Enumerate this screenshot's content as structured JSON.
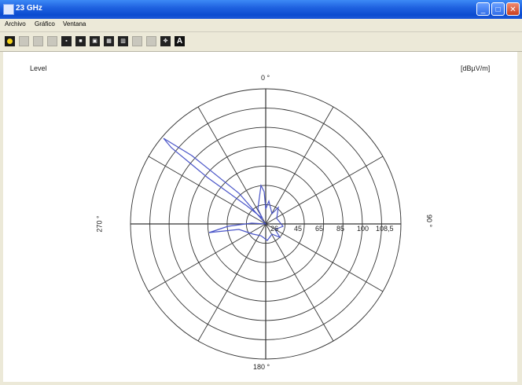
{
  "window": {
    "title": "23 GHz"
  },
  "menu": [
    "Archivo",
    "Gráfico",
    "Ventana"
  ],
  "window_buttons": {
    "minimize": "_",
    "maximize": "□",
    "close": "✕"
  },
  "plot": {
    "level_label": "Level",
    "unit_label": "[dBµV/m]",
    "angle_0": "0 °",
    "angle_90": "90 °",
    "angle_180": "180 °",
    "angle_270": "270 °",
    "ring_labels": [
      "26",
      "45",
      "65",
      "85",
      "100",
      "108,5"
    ],
    "trace_color": "#4a55c8"
  },
  "toolbar_icons": [
    "home-icon",
    "grid-icon",
    "grid-icon",
    "grid-icon",
    "zoom-icon",
    "sn-icon",
    "zs-icon",
    "chart-icon",
    "chart-icon",
    "grid-icon",
    "grid-icon",
    "move-icon",
    "text-A-icon"
  ],
  "toolbar_text": {
    "A": "A"
  }
}
